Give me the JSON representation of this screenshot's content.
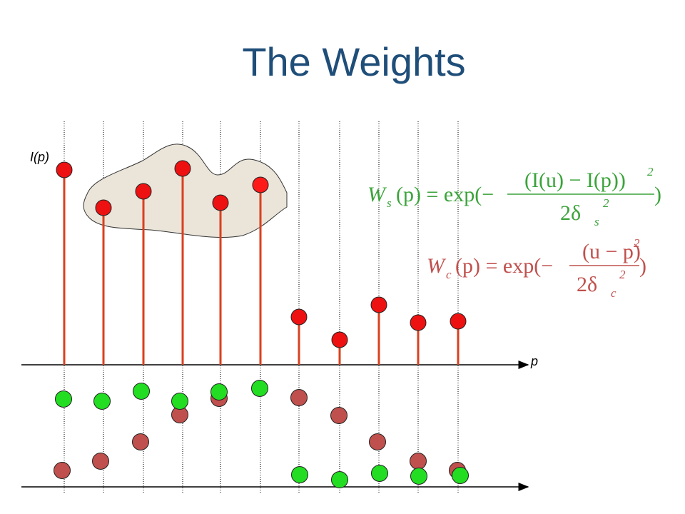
{
  "title": "The Weights",
  "labels": {
    "intensity_axis": "I(p)",
    "position_axis": "p"
  },
  "formulas": [
    {
      "left": "W",
      "left_sub": "s",
      "middle": "(p) = exp(−",
      "numerator": "(I(u) − I(p))",
      "numerator_sup": "2",
      "denominator": "2δ",
      "denominator_sub": "s",
      "denominator_sup": "2",
      "right": ")"
    },
    {
      "left": "W",
      "left_sub": "c",
      "middle": "(p) = exp(−",
      "numerator": "(u − p)",
      "numerator_sup": "2",
      "denominator": "2δ",
      "denominator_sub": "c",
      "denominator_sup": "2",
      "right": ")"
    }
  ]
}
